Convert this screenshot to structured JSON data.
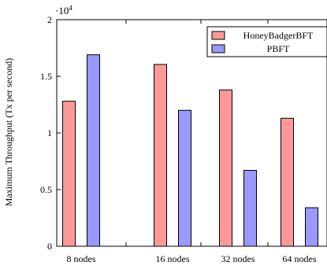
{
  "chart_data": {
    "type": "bar",
    "categories": [
      "8 nodes",
      "16 nodes",
      "32 nodes",
      "64 nodes"
    ],
    "series": [
      {
        "name": "HoneyBadgerBFT",
        "color": "#ff9999",
        "values": [
          12800,
          16050,
          13800,
          11300
        ]
      },
      {
        "name": "PBFT",
        "color": "#9999ff",
        "values": [
          16900,
          12000,
          6700,
          3400
        ]
      }
    ],
    "ylabel": "Maximum Throughput (Tx per second)",
    "xlabel": "",
    "title": "",
    "ylim": [
      0,
      20000
    ],
    "ytick_values": [
      0,
      5000,
      10000,
      15000,
      20000
    ],
    "ytick_labels": [
      "0",
      "0.5",
      "1",
      "1.5",
      "2"
    ],
    "y_scale_base": "·10",
    "y_scale_exponent": "4",
    "legend_position": "top-right",
    "grid": false
  }
}
